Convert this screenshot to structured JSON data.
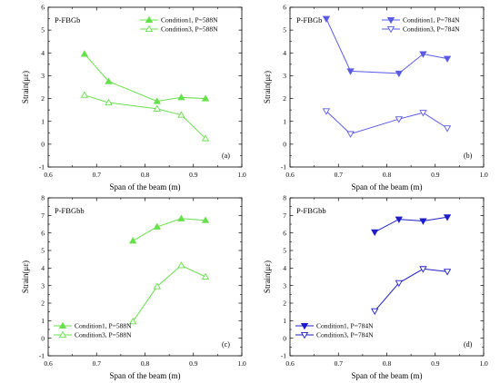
{
  "chart_data": [
    {
      "type": "line",
      "panel_title": "P-FBGb",
      "panel_letter": "(a)",
      "xlabel": "Span of the beam (m)",
      "ylabel": "Strain(με)",
      "xlim": [
        0.6,
        1.0
      ],
      "ylim": [
        -1,
        6
      ],
      "xticks": [
        "0.6",
        "0.7",
        "0.8",
        "0.9",
        "1.0"
      ],
      "yticks": [
        "-1",
        "0",
        "1",
        "2",
        "3",
        "4",
        "5",
        "6"
      ],
      "grid": false,
      "legend_position": "top-right",
      "color": "#66e04a",
      "series": [
        {
          "name": "Condition1, P=588N",
          "marker": "triangle-up-filled",
          "x": [
            0.675,
            0.725,
            0.825,
            0.875,
            0.925
          ],
          "y": [
            3.95,
            2.75,
            1.88,
            2.05,
            2.0
          ]
        },
        {
          "name": "Condition3, P=588N",
          "marker": "triangle-up-open",
          "x": [
            0.675,
            0.725,
            0.825,
            0.875,
            0.925
          ],
          "y": [
            2.15,
            1.82,
            1.55,
            1.28,
            0.25
          ]
        }
      ]
    },
    {
      "type": "line",
      "panel_title": "P-FBGb",
      "panel_letter": "(b)",
      "xlabel": "Span of the beam (m)",
      "ylabel": "Strain(με)",
      "xlim": [
        0.6,
        1.0
      ],
      "ylim": [
        -1,
        6
      ],
      "xticks": [
        "0.6",
        "0.7",
        "0.8",
        "0.9",
        "1.0"
      ],
      "yticks": [
        "-1",
        "0",
        "1",
        "2",
        "3",
        "4",
        "5",
        "6"
      ],
      "grid": false,
      "legend_position": "top-right",
      "color": "#5a5ae6",
      "series": [
        {
          "name": "Condition1, P=784N",
          "marker": "triangle-down-filled",
          "x": [
            0.675,
            0.725,
            0.825,
            0.875,
            0.925
          ],
          "y": [
            5.5,
            3.2,
            3.1,
            3.95,
            3.75
          ]
        },
        {
          "name": "Condition3, P=784N",
          "marker": "triangle-down-open",
          "x": [
            0.675,
            0.725,
            0.825,
            0.875,
            0.925
          ],
          "y": [
            1.45,
            0.45,
            1.1,
            1.38,
            0.7
          ]
        }
      ]
    },
    {
      "type": "line",
      "panel_title": "P-FBGbb",
      "panel_letter": "(c)",
      "xlabel": "Span of the beam (m)",
      "ylabel": "Strain(με)",
      "xlim": [
        0.6,
        1.0
      ],
      "ylim": [
        -1,
        8
      ],
      "xticks": [
        "0.6",
        "0.7",
        "0.8",
        "0.9",
        "1.0"
      ],
      "yticks": [
        "-1",
        "0",
        "1",
        "2",
        "3",
        "4",
        "5",
        "6",
        "7",
        "8"
      ],
      "grid": false,
      "legend_position": "bottom-left",
      "color": "#66e04a",
      "series": [
        {
          "name": "Condition1, P=588N",
          "marker": "triangle-up-filled",
          "x": [
            0.775,
            0.825,
            0.875,
            0.925
          ],
          "y": [
            5.55,
            6.35,
            6.82,
            6.72
          ]
        },
        {
          "name": "Condition3, P=588N",
          "marker": "triangle-up-open",
          "x": [
            0.775,
            0.825,
            0.875,
            0.925
          ],
          "y": [
            0.95,
            2.95,
            4.15,
            3.5
          ]
        }
      ]
    },
    {
      "type": "line",
      "panel_title": "P-FBGbb",
      "panel_letter": "(d)",
      "xlabel": "Span of the beam (m)",
      "ylabel": "Strain(με)",
      "xlim": [
        0.6,
        1.0
      ],
      "ylim": [
        -1,
        8
      ],
      "xticks": [
        "0.6",
        "0.7",
        "0.8",
        "0.9",
        "1.0"
      ],
      "yticks": [
        "-1",
        "0",
        "1",
        "2",
        "3",
        "4",
        "5",
        "6",
        "7",
        "8"
      ],
      "grid": false,
      "legend_position": "bottom-left",
      "color": "#1e1ec8",
      "series": [
        {
          "name": "Condition1, P=784N",
          "marker": "triangle-down-filled",
          "x": [
            0.775,
            0.825,
            0.875,
            0.925
          ],
          "y": [
            6.05,
            6.78,
            6.68,
            6.9
          ]
        },
        {
          "name": "Condition3, P=784N",
          "marker": "triangle-down-open",
          "x": [
            0.775,
            0.825,
            0.875,
            0.925
          ],
          "y": [
            1.55,
            3.15,
            3.95,
            3.8
          ]
        }
      ]
    }
  ]
}
